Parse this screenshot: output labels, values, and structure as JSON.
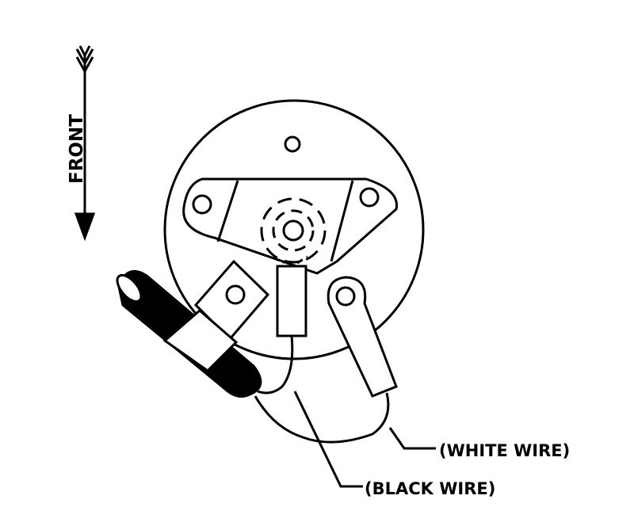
{
  "labels": {
    "front": "FRONT",
    "white_wire": "(WHITE WIRE)",
    "black_wire": "(BLACK WIRE)"
  },
  "colors": {
    "ink": "#000000",
    "paper": "#ffffff"
  }
}
